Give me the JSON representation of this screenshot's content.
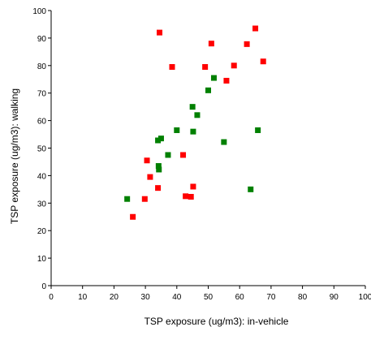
{
  "chart_data": {
    "type": "scatter",
    "title": "",
    "xlabel": "TSP exposure (ug/m3): in-vehicle",
    "ylabel": "TSP exposure (ug/m3): walking",
    "xlim": [
      0,
      100
    ],
    "ylim": [
      0,
      100
    ],
    "x_ticks": [
      "0",
      "10",
      "20",
      "30",
      "40",
      "50",
      "60",
      "70",
      "80",
      "90",
      "100"
    ],
    "y_ticks": [
      "0",
      "10",
      "20",
      "30",
      "40",
      "50",
      "60",
      "70",
      "80",
      "90",
      "100"
    ],
    "grid": false,
    "legend": "none",
    "series": [
      {
        "color": "#ff0000",
        "points": [
          [
            26,
            25
          ],
          [
            29.8,
            31.5
          ],
          [
            30.5,
            45.5
          ],
          [
            31.5,
            39.5
          ],
          [
            34,
            35.5
          ],
          [
            34.5,
            92
          ],
          [
            38.5,
            79.5
          ],
          [
            42,
            47.5
          ],
          [
            42.8,
            32.5
          ],
          [
            44.5,
            32.3
          ],
          [
            45.2,
            36
          ],
          [
            49,
            79.5
          ],
          [
            51,
            88
          ],
          [
            55.8,
            74.5
          ],
          [
            58.2,
            80
          ],
          [
            62.3,
            87.8
          ],
          [
            65,
            93.5
          ],
          [
            67.5,
            81.5
          ]
        ]
      },
      {
        "color": "#008000",
        "points": [
          [
            24.2,
            31.5
          ],
          [
            34,
            52.8
          ],
          [
            34.2,
            43.5
          ],
          [
            34.3,
            42.2
          ],
          [
            35,
            53.5
          ],
          [
            37.2,
            47.5
          ],
          [
            40,
            56.5
          ],
          [
            45,
            65
          ],
          [
            45.2,
            56
          ],
          [
            46.5,
            62
          ],
          [
            50,
            71
          ],
          [
            51.8,
            75.5
          ],
          [
            55,
            52.2
          ],
          [
            63.5,
            35
          ],
          [
            65.8,
            56.5
          ]
        ]
      }
    ]
  }
}
